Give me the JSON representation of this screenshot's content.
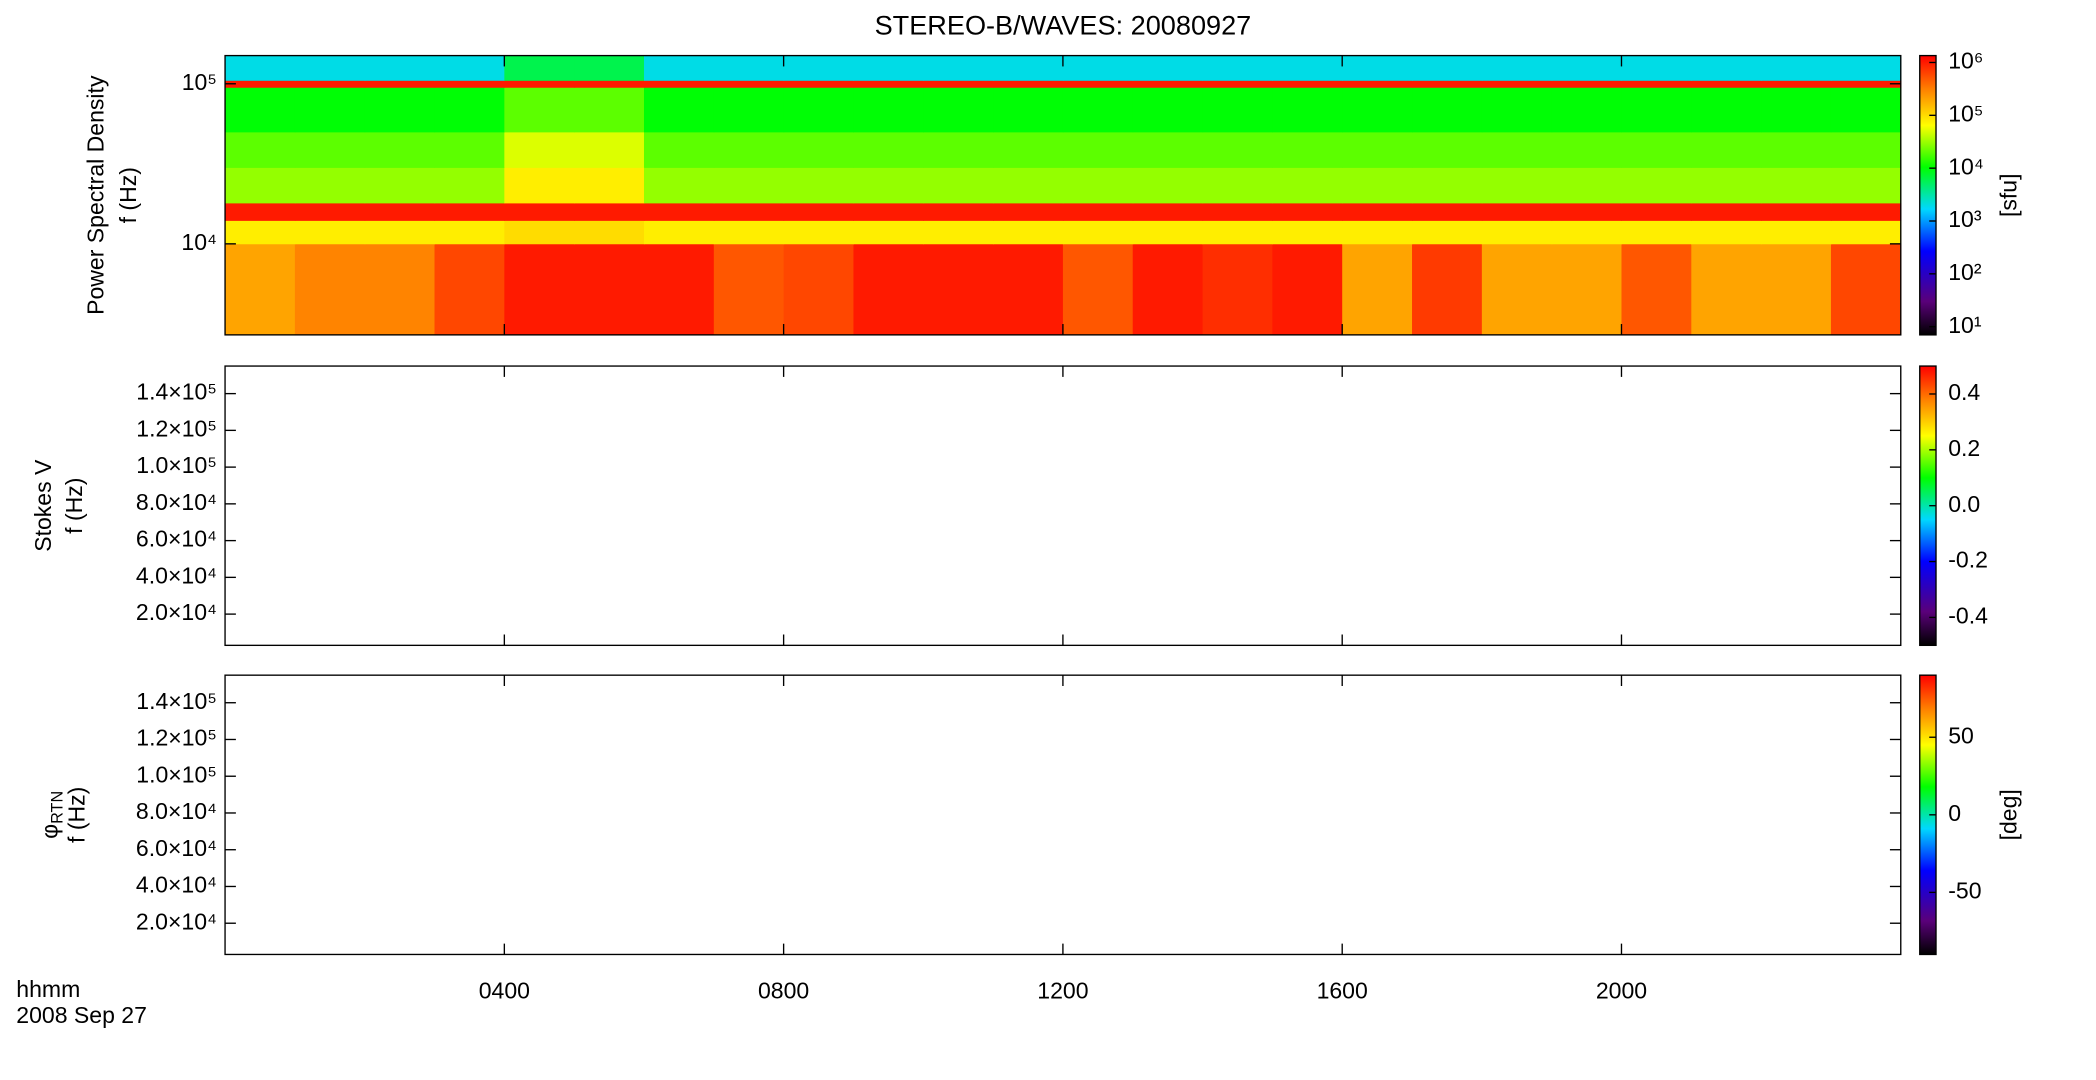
{
  "title": "STEREO-B/WAVES: 20080927",
  "time_label": "hhmm",
  "date_label": "2008 Sep 27",
  "chart_data": [
    {
      "type": "heatmap",
      "ylabel_lines": [
        "Power Spectral Density",
        "f (Hz)"
      ],
      "ylim": [
        2700,
        150000
      ],
      "log_y": true,
      "yticks": [
        {
          "value": 10000,
          "label": "10⁴"
        },
        {
          "value": 100000,
          "label": "10⁵"
        }
      ],
      "x_bins": [
        0,
        1,
        2,
        3,
        4,
        5,
        6,
        7,
        8,
        9,
        10,
        11,
        12,
        13,
        14,
        15,
        16,
        17,
        18,
        19,
        20,
        21,
        22,
        23,
        24
      ],
      "y_bins": [
        2700,
        10000,
        14000,
        18000,
        30000,
        50000,
        95000,
        105000,
        150000
      ],
      "z": [
        [
          200000,
          300000,
          300000,
          600000,
          1000000,
          1000000,
          1000000,
          500000,
          600000,
          1000000,
          1000000,
          1000000,
          500000,
          1000000,
          800000,
          1000000,
          200000,
          700000,
          200000,
          200000,
          500000,
          200000,
          200000,
          600000
        ],
        [
          80000,
          80000,
          80000,
          80000,
          100000,
          100000,
          80000,
          80000,
          80000,
          80000,
          80000,
          80000,
          80000,
          80000,
          80000,
          80000,
          80000,
          80000,
          80000,
          80000,
          80000,
          80000,
          80000,
          80000
        ],
        [
          1000000,
          1000000,
          1000000,
          1000000,
          1000000,
          1000000,
          1000000,
          1000000,
          1000000,
          1000000,
          1000000,
          1000000,
          1000000,
          1000000,
          1000000,
          1000000,
          1000000,
          1000000,
          1000000,
          1000000,
          1000000,
          1000000,
          1000000,
          1000000
        ],
        [
          30000,
          30000,
          30000,
          30000,
          80000,
          80000,
          30000,
          30000,
          30000,
          30000,
          30000,
          30000,
          30000,
          30000,
          30000,
          30000,
          30000,
          30000,
          30000,
          30000,
          30000,
          30000,
          30000,
          30000
        ],
        [
          20000,
          20000,
          20000,
          20000,
          50000,
          50000,
          20000,
          20000,
          20000,
          20000,
          20000,
          20000,
          20000,
          20000,
          20000,
          20000,
          20000,
          20000,
          20000,
          20000,
          20000,
          20000,
          20000,
          20000
        ],
        [
          10000,
          10000,
          10000,
          10000,
          20000,
          20000,
          10000,
          10000,
          10000,
          10000,
          10000,
          10000,
          10000,
          10000,
          10000,
          10000,
          10000,
          10000,
          10000,
          10000,
          10000,
          10000,
          10000,
          10000
        ],
        [
          1000000,
          1000000,
          1000000,
          1000000,
          1000000,
          1000000,
          1000000,
          1000000,
          1000000,
          1000000,
          1000000,
          1000000,
          1000000,
          1000000,
          1000000,
          1000000,
          1000000,
          1000000,
          1000000,
          1000000,
          1000000,
          1000000,
          1000000,
          1000000
        ],
        [
          2000,
          2000,
          2000,
          2000,
          6000,
          6000,
          2000,
          2000,
          2000,
          2000,
          2000,
          2000,
          2000,
          2000,
          2000,
          2000,
          2000,
          2000,
          2000,
          2000,
          2000,
          2000,
          2000,
          2000
        ]
      ],
      "zlim": [
        7,
        1350000
      ],
      "log_z": true,
      "zticks": [
        {
          "value": 10,
          "label": "10¹"
        },
        {
          "value": 100,
          "label": "10²"
        },
        {
          "value": 1000,
          "label": "10³"
        },
        {
          "value": 10000,
          "label": "10⁴"
        },
        {
          "value": 100000,
          "label": "10⁵"
        },
        {
          "value": 1000000,
          "label": "10⁶"
        }
      ],
      "colorbar_label": "[sfu]"
    },
    {
      "type": "heatmap",
      "ylabel_lines": [
        "Stokes V",
        "f (Hz)"
      ],
      "ylim": [
        3000,
        155000
      ],
      "log_y": false,
      "yticks": [
        {
          "value": 20000,
          "label": "2.0×10⁴"
        },
        {
          "value": 40000,
          "label": "4.0×10⁴"
        },
        {
          "value": 60000,
          "label": "6.0×10⁴"
        },
        {
          "value": 80000,
          "label": "8.0×10⁴"
        },
        {
          "value": 100000,
          "label": "1.0×10⁵"
        },
        {
          "value": 120000,
          "label": "1.2×10⁵"
        },
        {
          "value": 140000,
          "label": "1.4×10⁵"
        }
      ],
      "zlim": [
        -0.5,
        0.5
      ],
      "log_z": false,
      "zticks": [
        -0.4,
        -0.2,
        {
          "value": 0,
          "label": "0.0"
        },
        0.2,
        0.4
      ]
    },
    {
      "type": "heatmap",
      "ylabel_symbol": "φ",
      "ylabel_subscript": "RTN",
      "ylabel_lines": [
        "f (Hz)"
      ],
      "ylim": [
        3000,
        155000
      ],
      "log_y": false,
      "yticks": [
        {
          "value": 20000,
          "label": "2.0×10⁴"
        },
        {
          "value": 40000,
          "label": "4.0×10⁴"
        },
        {
          "value": 60000,
          "label": "6.0×10⁴"
        },
        {
          "value": 80000,
          "label": "8.0×10⁴"
        },
        {
          "value": 100000,
          "label": "1.0×10⁵"
        },
        {
          "value": 120000,
          "label": "1.2×10⁵"
        },
        {
          "value": 140000,
          "label": "1.4×10⁵"
        }
      ],
      "zlim": [
        -90,
        90
      ],
      "log_z": false,
      "zticks": [
        -50,
        0,
        50
      ],
      "colorbar_label": "[deg]",
      "xlim": [
        0,
        24
      ],
      "xticks": [
        {
          "value": 4,
          "label": "0400"
        },
        {
          "value": 8,
          "label": "0800"
        },
        {
          "value": 12,
          "label": "1200"
        },
        {
          "value": 16,
          "label": "1600"
        },
        {
          "value": 20,
          "label": "2000"
        }
      ]
    }
  ]
}
